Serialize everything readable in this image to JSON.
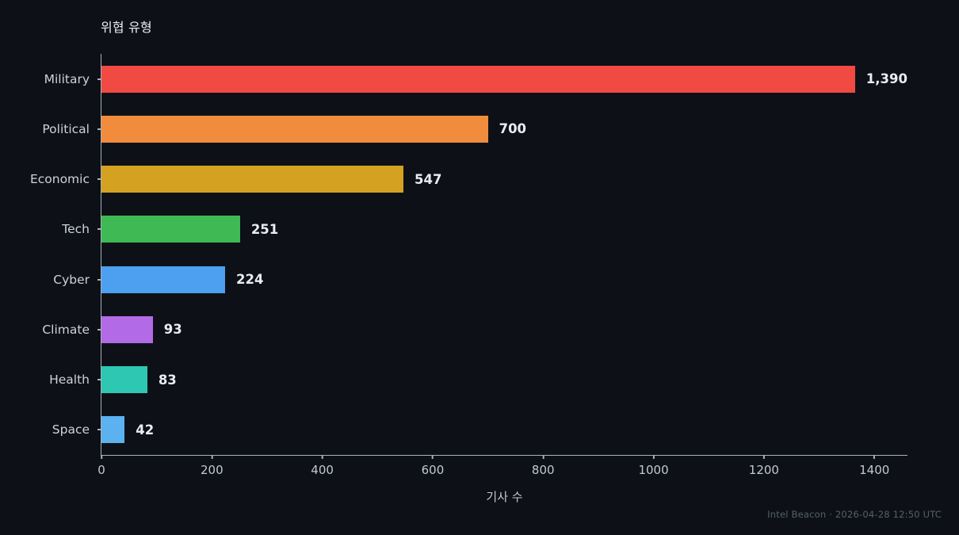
{
  "page": {
    "footer": "Intel Beacon · 2026-04-28 12:50 UTC"
  },
  "chart_data": {
    "type": "bar",
    "orientation": "horizontal",
    "title": "위협 유형",
    "xlabel": "기사 수",
    "ylabel": "",
    "categories": [
      "Military",
      "Political",
      "Economic",
      "Tech",
      "Cyber",
      "Climate",
      "Health",
      "Space"
    ],
    "values": [
      1390,
      700,
      547,
      251,
      224,
      93,
      83,
      42
    ],
    "value_labels": [
      "1,390",
      "700",
      "547",
      "251",
      "224",
      "93",
      "83",
      "42"
    ],
    "bar_colors": [
      "#f04a42",
      "#f08c3c",
      "#d4a120",
      "#3eb954",
      "#4d9ff0",
      "#b36ae6",
      "#2ec7b2",
      "#5cb1f0"
    ],
    "xlim": [
      0,
      1460
    ],
    "xticks": [
      0,
      200,
      400,
      600,
      800,
      1000,
      1200,
      1400
    ],
    "grid": false,
    "legend": false,
    "background": "#0d1117",
    "axis_color": "#a9b1ba",
    "text_color": "#e9ecf1"
  }
}
